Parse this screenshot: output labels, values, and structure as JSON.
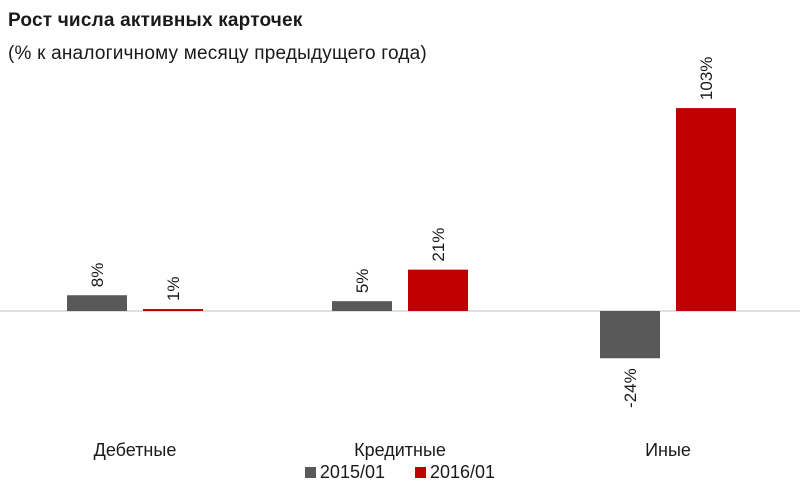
{
  "chart_data": {
    "type": "bar",
    "title": "Рост числа активных карточек",
    "subtitle": "(% к аналогичному месяцу предыдущего года)",
    "categories": [
      "Дебетные",
      "Кредитные",
      "Иные"
    ],
    "series": [
      {
        "name": "2015/01",
        "values": [
          8,
          5,
          -24
        ],
        "labels": [
          "8%",
          "5%",
          "-24%"
        ],
        "color": "#595959"
      },
      {
        "name": "2016/01",
        "values": [
          1,
          21,
          103
        ],
        "labels": [
          "1%",
          "21%",
          "103%"
        ],
        "color": "#c00000"
      }
    ],
    "ylim": [
      -55,
      115
    ],
    "grid": false,
    "legend": "bottom"
  }
}
